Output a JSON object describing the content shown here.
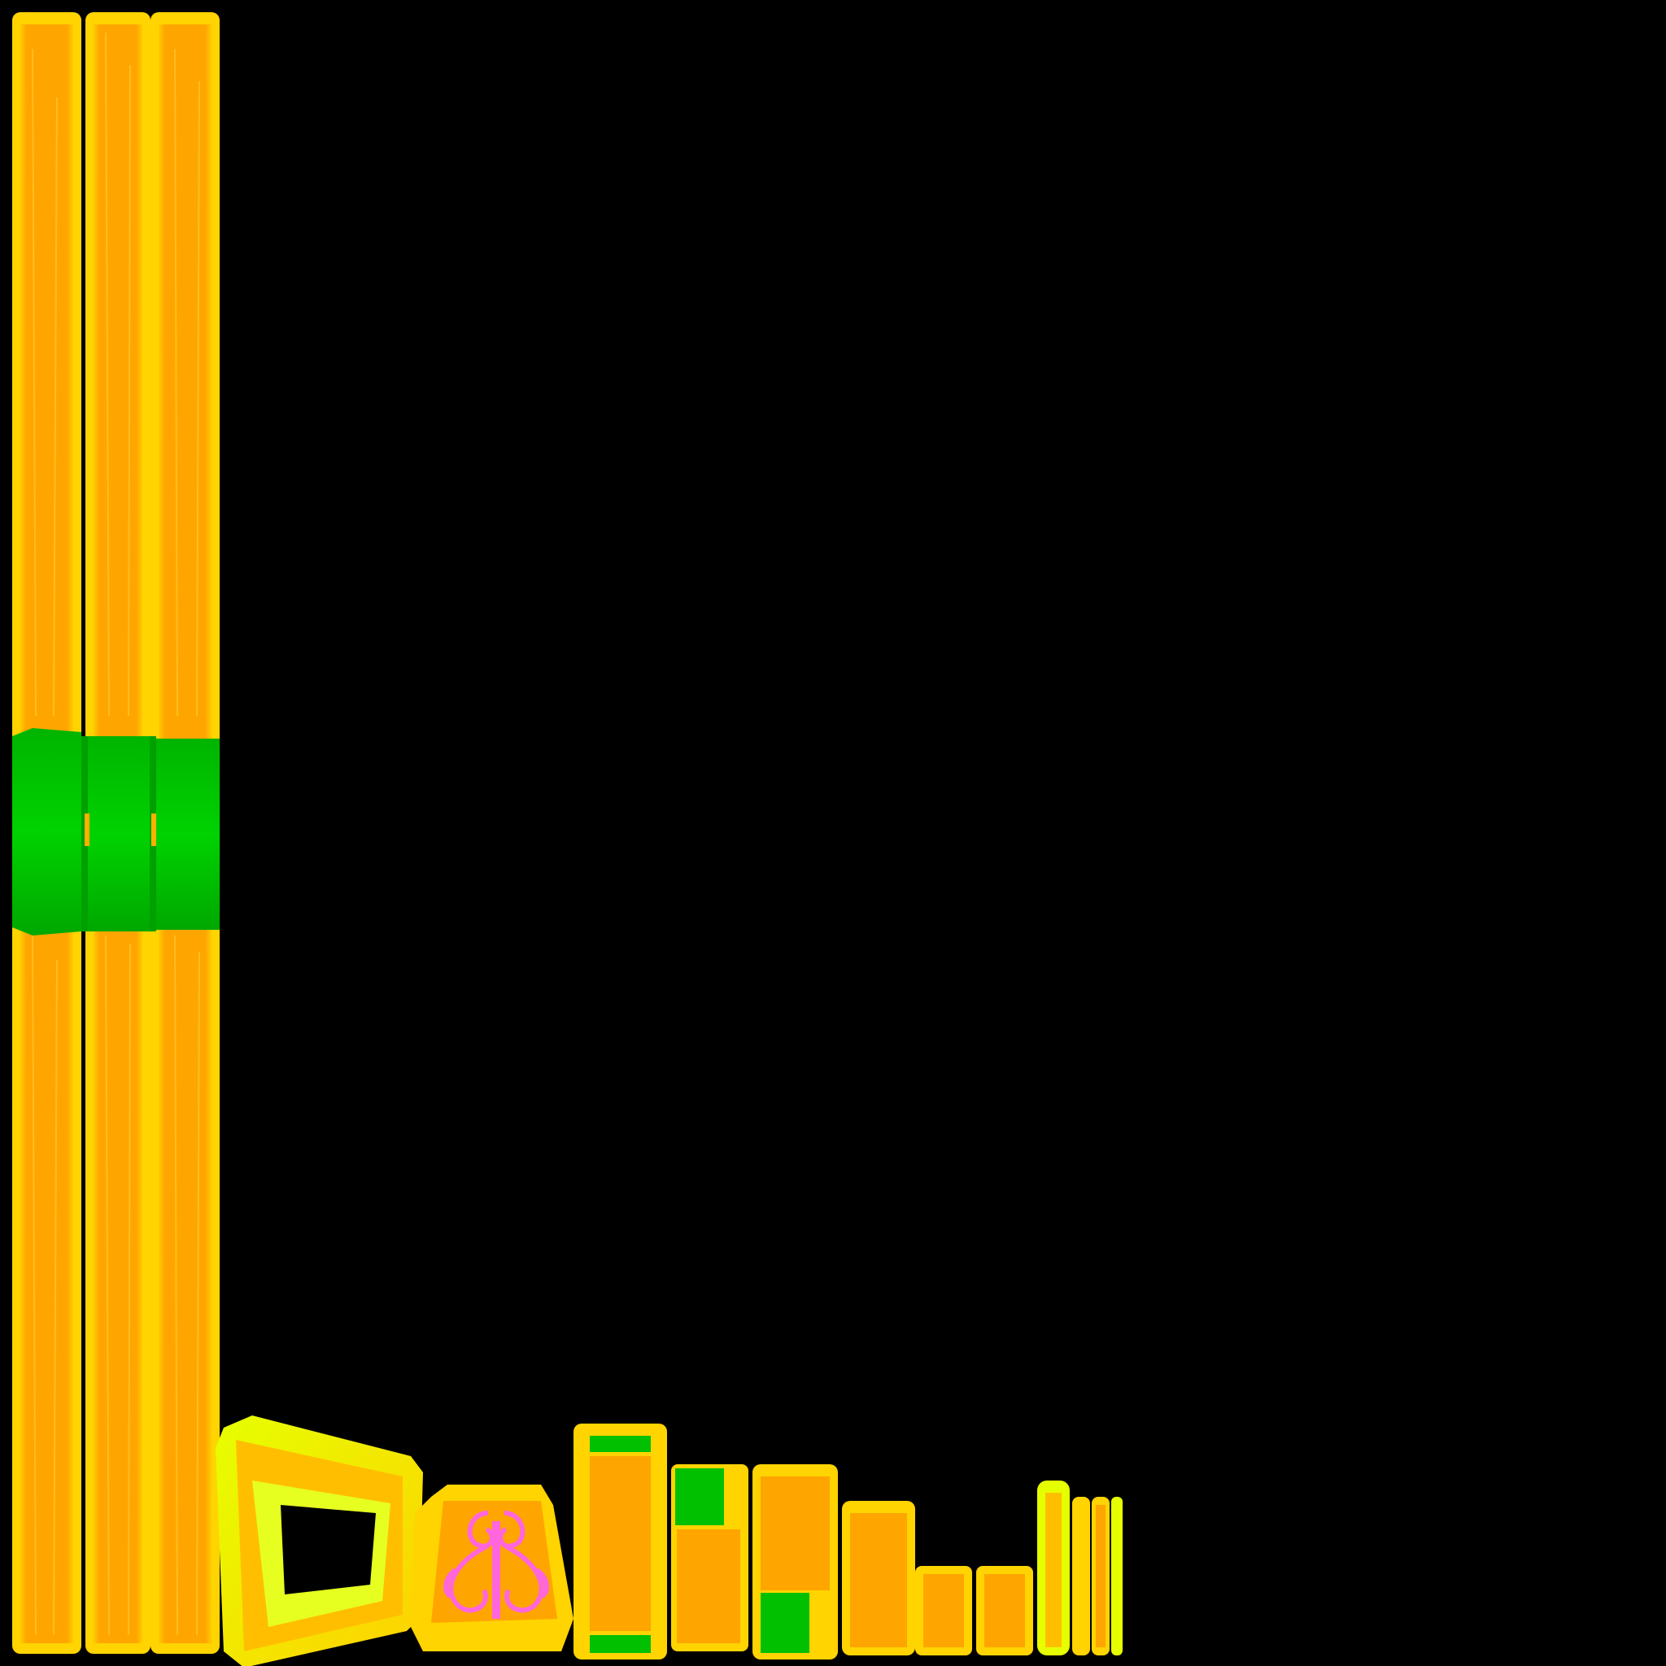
{
  "texture_atlas": {
    "background_color": "#000000",
    "colors": {
      "wood_fill": "#ffa500",
      "wood_edge": "#ffd400",
      "wood_rim": "#e6ff00",
      "green_band": "#00c800",
      "green_dark": "#00a000",
      "ornament_pink": "#ff66dd",
      "ornament_stroke": "#ff99ee"
    },
    "pieces": [
      "tall-plank-left",
      "tall-plank-middle",
      "tall-plank-right",
      "green-band",
      "trapezoid-frame",
      "ornament-tile",
      "pillar-block",
      "small-blocks",
      "thin-strips"
    ],
    "ornament": "swirl-scroll-icon"
  }
}
